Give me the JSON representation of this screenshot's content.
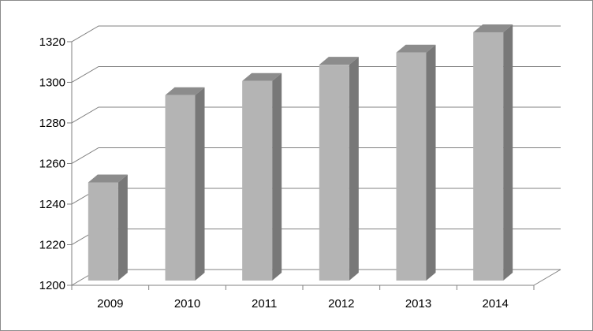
{
  "chart_data": {
    "type": "bar",
    "title": "",
    "xlabel": "",
    "ylabel": "",
    "categories": [
      "2009",
      "2010",
      "2011",
      "2012",
      "2013",
      "2014"
    ],
    "values": [
      1246,
      1289,
      1296,
      1304,
      1310,
      1320
    ],
    "ylim": [
      1200,
      1320
    ],
    "yticks": [
      "1200",
      "1220",
      "1240",
      "1260",
      "1280",
      "1300",
      "1320"
    ],
    "grid": true,
    "style": "3d-column",
    "colors": {
      "bar_front": "#b4b4b4",
      "bar_side": "#787878",
      "bar_top": "#8c8c8c",
      "gridline": "#808080",
      "axis": "#808080"
    }
  }
}
